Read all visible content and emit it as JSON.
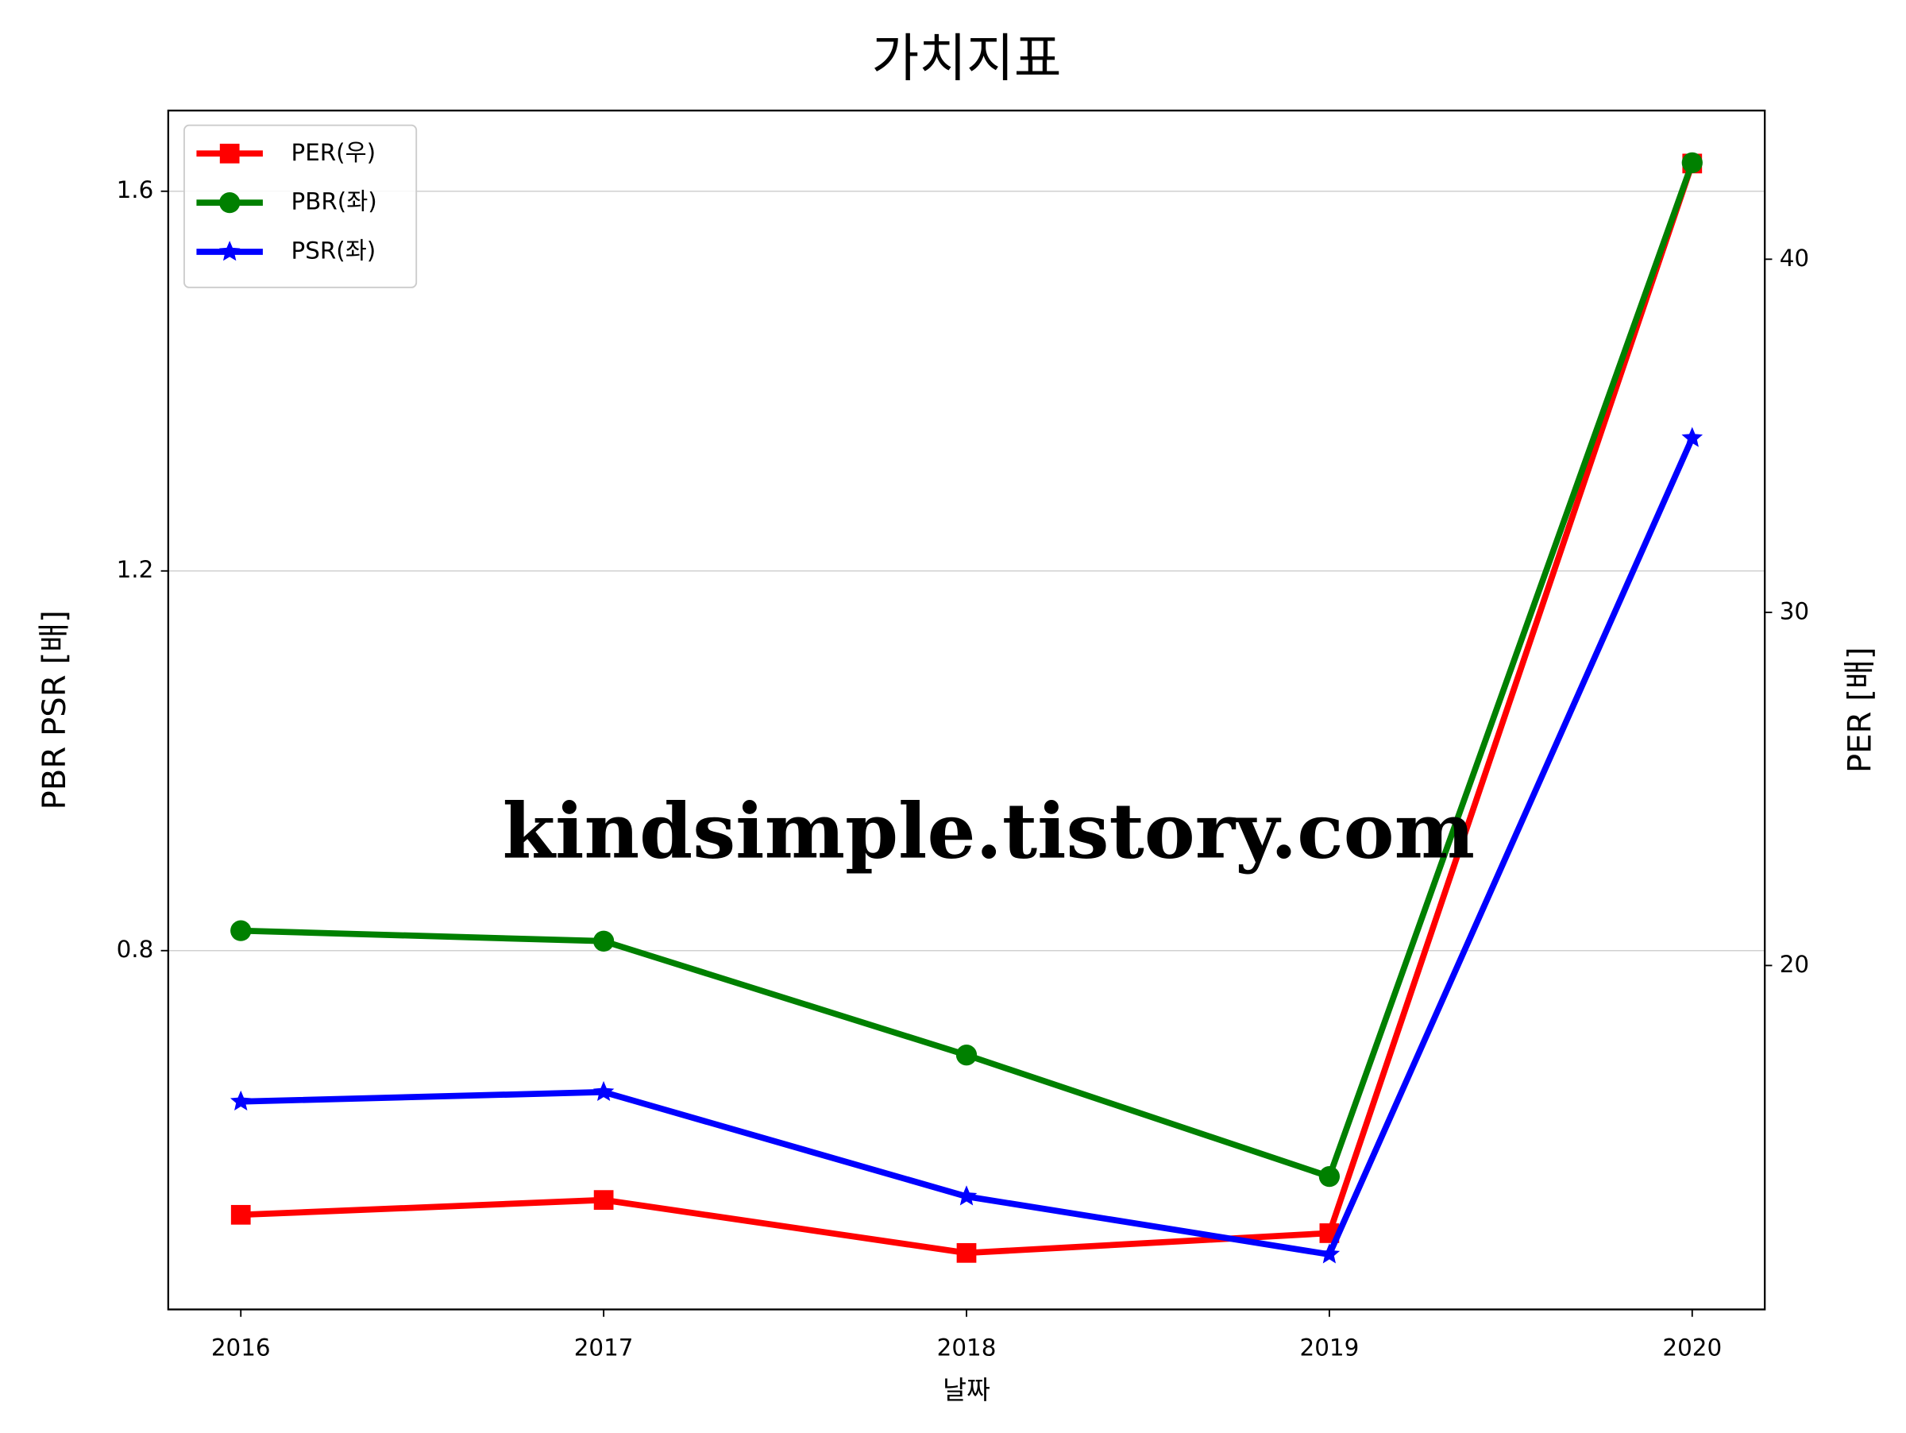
{
  "chart_data": {
    "type": "line",
    "title": "가치지표",
    "xlabel": "날짜",
    "ylabel": "PBR PSR [배]",
    "ylabel_color": "#008000",
    "y2label": "PER [배]",
    "y2label_color": "#ff0000",
    "annotation": "kindsimple.tistory.com",
    "annotation_color": "#e4a4ec",
    "x": [
      2016,
      2017,
      2018,
      2019,
      2020
    ],
    "xlim": [
      2015.8,
      2020.2
    ],
    "xticks": [
      2016,
      2017,
      2018,
      2019,
      2020
    ],
    "ylim": [
      0.422,
      1.685
    ],
    "yticks": [
      0.8,
      1.2,
      1.6
    ],
    "y2lim": [
      10.26,
      44.21
    ],
    "y2ticks": [
      20,
      30,
      40
    ],
    "grid": true,
    "legend": "upper left",
    "series": [
      {
        "name": "PER(우)",
        "color": "#ff0000",
        "marker": "square",
        "axis": "y2",
        "values": [
          12.94,
          13.36,
          11.86,
          12.42,
          42.71
        ]
      },
      {
        "name": "PBR(좌)",
        "color": "#008000",
        "marker": "circle",
        "values": [
          0.821,
          0.81,
          0.69,
          0.562,
          1.63
        ]
      },
      {
        "name": "PSR(좌)",
        "color": "#0000ff",
        "marker": "star",
        "values": [
          0.641,
          0.651,
          0.541,
          0.48,
          1.34
        ]
      }
    ]
  }
}
